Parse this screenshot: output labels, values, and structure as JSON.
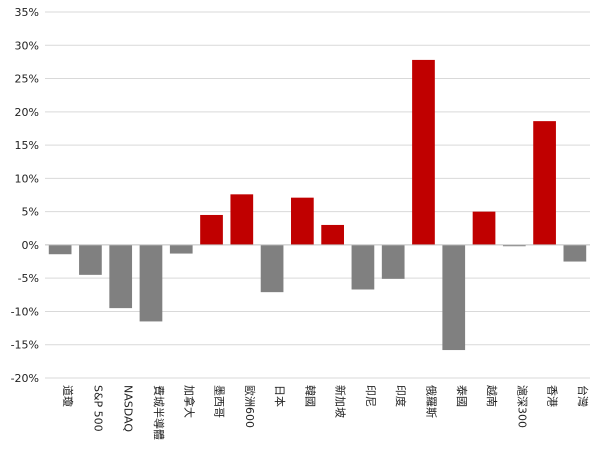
{
  "chart_data": {
    "type": "bar",
    "title": "",
    "xlabel": "",
    "ylabel": "",
    "ylim": [
      -20,
      35
    ],
    "yticks": [
      -20,
      -15,
      -10,
      -5,
      0,
      5,
      10,
      15,
      20,
      25,
      30,
      35
    ],
    "ytick_labels": [
      "-20%",
      "-15%",
      "-10%",
      "-5%",
      "0%",
      "5%",
      "10%",
      "15%",
      "20%",
      "25%",
      "30%",
      "35%"
    ],
    "grid": "horizontal",
    "categories": [
      "道瓊",
      "S&P 500",
      "NASDAQ",
      "費城半導體",
      "加拿大",
      "墨西哥",
      "歐洲600",
      "日本",
      "韓國",
      "新加坡",
      "印尼",
      "印度",
      "俄羅斯",
      "泰國",
      "越南",
      "滬深300",
      "香港",
      "台灣"
    ],
    "values": [
      -1.4,
      -4.5,
      -9.5,
      -11.5,
      -1.3,
      4.5,
      7.6,
      -7.1,
      7.1,
      3.0,
      -6.7,
      -5.1,
      27.8,
      -15.8,
      5.0,
      -0.2,
      18.6,
      -2.5
    ],
    "colors": {
      "positive": "#c00000",
      "negative": "#808080",
      "grid": "#d9d9d9",
      "axis": "#bfbfbf"
    }
  }
}
